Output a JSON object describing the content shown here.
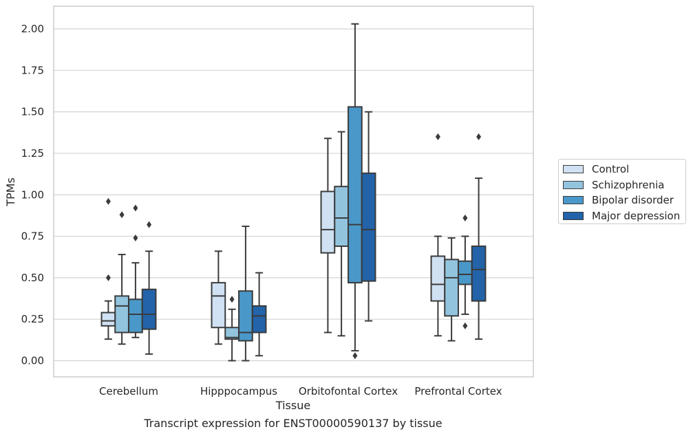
{
  "chart_data": {
    "type": "box",
    "xlabel": "Tissue",
    "ylabel": "TPMs",
    "caption": "Transcript expression for ENST00000590137 by tissue",
    "categories": [
      "Cerebellum",
      "Hipppocampus",
      "Orbitofontal Cortex",
      "Prefrontal Cortex"
    ],
    "ylim": [
      -0.1,
      2.13
    ],
    "yticks": [
      "0.00",
      "0.25",
      "0.50",
      "0.75",
      "1.00",
      "1.25",
      "1.50",
      "1.75",
      "2.00"
    ],
    "grid": true,
    "legend_position": "right",
    "series": [
      {
        "name": "Control",
        "color": "#cfe1f2",
        "boxes": [
          {
            "whislo": 0.13,
            "q1": 0.21,
            "med": 0.24,
            "q3": 0.29,
            "whishi": 0.36,
            "fliers": [
              0.5,
              0.96
            ]
          },
          {
            "whislo": 0.1,
            "q1": 0.2,
            "med": 0.39,
            "q3": 0.47,
            "whishi": 0.66,
            "fliers": []
          },
          {
            "whislo": 0.17,
            "q1": 0.65,
            "med": 0.79,
            "q3": 1.02,
            "whishi": 1.34,
            "fliers": []
          },
          {
            "whislo": 0.15,
            "q1": 0.36,
            "med": 0.46,
            "q3": 0.63,
            "whishi": 0.75,
            "fliers": [
              1.35
            ]
          }
        ]
      },
      {
        "name": "Schizophrenia",
        "color": "#93c4de",
        "boxes": [
          {
            "whislo": 0.1,
            "q1": 0.17,
            "med": 0.33,
            "q3": 0.39,
            "whishi": 0.64,
            "fliers": [
              0.88
            ]
          },
          {
            "whislo": 0.0,
            "q1": 0.13,
            "med": 0.14,
            "q3": 0.2,
            "whishi": 0.31,
            "fliers": [
              0.37
            ]
          },
          {
            "whislo": 0.15,
            "q1": 0.69,
            "med": 0.86,
            "q3": 1.05,
            "whishi": 1.38,
            "fliers": []
          },
          {
            "whislo": 0.12,
            "q1": 0.27,
            "med": 0.5,
            "q3": 0.61,
            "whishi": 0.74,
            "fliers": []
          }
        ]
      },
      {
        "name": "Bipolar disorder",
        "color": "#4a98c9",
        "boxes": [
          {
            "whislo": 0.14,
            "q1": 0.17,
            "med": 0.28,
            "q3": 0.37,
            "whishi": 0.59,
            "fliers": [
              0.74,
              0.92
            ]
          },
          {
            "whislo": 0.0,
            "q1": 0.12,
            "med": 0.17,
            "q3": 0.42,
            "whishi": 0.81,
            "fliers": []
          },
          {
            "whislo": 0.06,
            "q1": 0.47,
            "med": 0.82,
            "q3": 1.53,
            "whishi": 2.03,
            "fliers": [
              0.03
            ]
          },
          {
            "whislo": 0.28,
            "q1": 0.46,
            "med": 0.52,
            "q3": 0.6,
            "whishi": 0.75,
            "fliers": [
              0.21,
              0.86
            ]
          }
        ]
      },
      {
        "name": "Major depression",
        "color": "#2263a9",
        "boxes": [
          {
            "whislo": 0.04,
            "q1": 0.19,
            "med": 0.28,
            "q3": 0.43,
            "whishi": 0.66,
            "fliers": [
              0.82
            ]
          },
          {
            "whislo": 0.03,
            "q1": 0.17,
            "med": 0.27,
            "q3": 0.33,
            "whishi": 0.53,
            "fliers": []
          },
          {
            "whislo": 0.24,
            "q1": 0.48,
            "med": 0.79,
            "q3": 1.13,
            "whishi": 1.5,
            "fliers": []
          },
          {
            "whislo": 0.13,
            "q1": 0.36,
            "med": 0.55,
            "q3": 0.69,
            "whishi": 1.1,
            "fliers": [
              1.35
            ]
          }
        ]
      }
    ]
  }
}
